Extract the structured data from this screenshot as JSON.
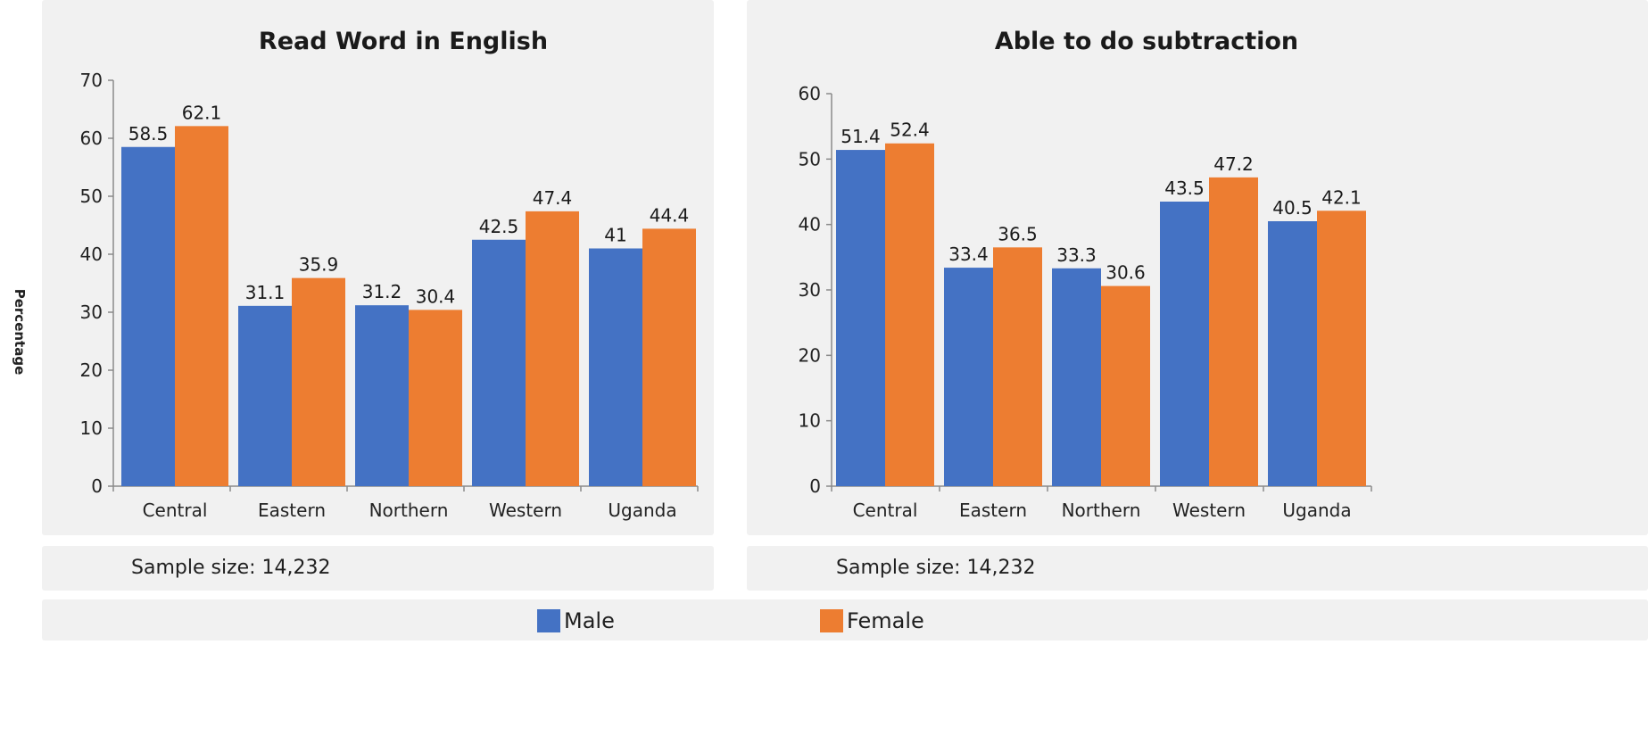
{
  "y_axis_title": "Percentage",
  "legend": {
    "items": [
      {
        "label": "Male",
        "color": "#4472C4"
      },
      {
        "label": "Female",
        "color": "#ED7D31"
      }
    ]
  },
  "panels": [
    {
      "sample_size": "Sample size: 14,232"
    },
    {
      "sample_size": "Sample size: 14,232"
    }
  ],
  "chart_data": [
    {
      "type": "bar",
      "title": "Read Word in English",
      "categories": [
        "Central",
        "Eastern",
        "Northern",
        "Western",
        "Uganda"
      ],
      "series": [
        {
          "name": "Male",
          "color": "#4472C4",
          "values": [
            58.5,
            31.1,
            31.2,
            42.5,
            41
          ]
        },
        {
          "name": "Female",
          "color": "#ED7D31",
          "values": [
            62.1,
            35.9,
            30.4,
            47.4,
            44.4
          ]
        }
      ],
      "value_labels": [
        [
          "58.5",
          "31.1",
          "31.2",
          "42.5",
          "41"
        ],
        [
          "62.1",
          "35.9",
          "30.4",
          "47.4",
          "44.4"
        ]
      ],
      "ylabel": "Percentage",
      "ylim": [
        0,
        70
      ],
      "yticks": [
        0,
        10,
        20,
        30,
        40,
        50,
        60,
        70
      ],
      "grid": false,
      "legend": "bottom"
    },
    {
      "type": "bar",
      "title": "Able to do subtraction",
      "categories": [
        "Central",
        "Eastern",
        "Northern",
        "Western",
        "Uganda"
      ],
      "series": [
        {
          "name": "Male",
          "color": "#4472C4",
          "values": [
            51.4,
            33.4,
            33.3,
            43.5,
            40.5
          ]
        },
        {
          "name": "Female",
          "color": "#ED7D31",
          "values": [
            52.4,
            36.5,
            30.6,
            47.2,
            42.1
          ]
        }
      ],
      "value_labels": [
        [
          "51.4",
          "33.4",
          "33.3",
          "43.5",
          "40.5"
        ],
        [
          "52.4",
          "36.5",
          "30.6",
          "47.2",
          "42.1"
        ]
      ],
      "ylabel": "",
      "ylim": [
        0,
        60
      ],
      "yticks": [
        0,
        10,
        20,
        30,
        40,
        50,
        60
      ],
      "grid": false,
      "legend": "bottom"
    }
  ]
}
